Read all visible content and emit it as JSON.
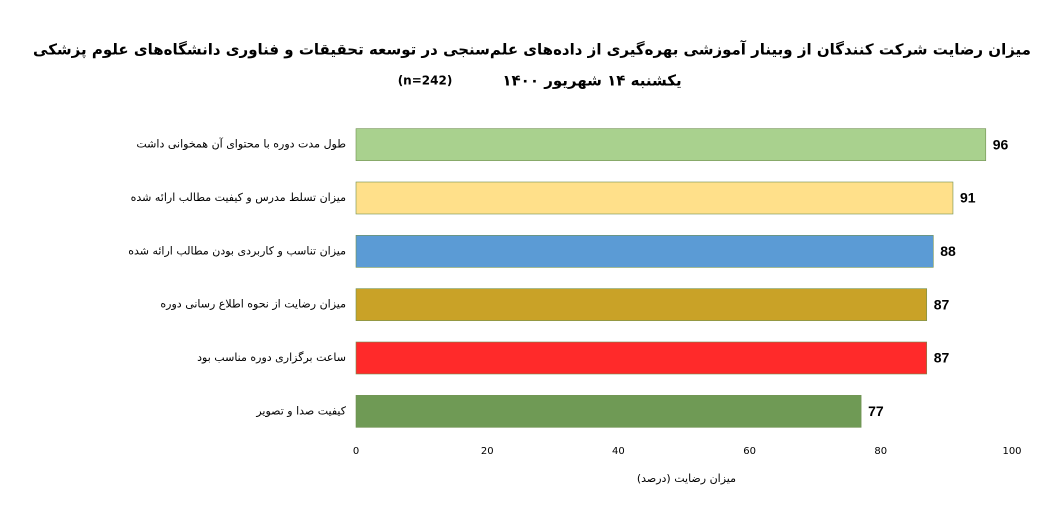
{
  "chart_data": {
    "type": "bar",
    "orientation": "horizontal",
    "title": "میزان رضایت شرکت کنندگان از وبینار آموزشی بهره‌گیری از داده‌های علم‌سنجی در توسعه تحقیقات و فناوری دانشگاه‌های علوم پزشکی",
    "subtitle": "یکشنبه ۱۴ شهریور ۱۴۰۰",
    "note": "(n=242)",
    "x_label": "میزان رضایت (درصد)",
    "categories": [
      "طول مدت دوره با محتوای آن همخوانی داشت",
      "میزان تسلط مدرس و کیفیت مطالب ارائه شده",
      "میزان تناسب و کاربردی بودن مطالب ارائه شده",
      "میزان رضایت از نحوه اطلاع رسانی دوره",
      "ساعت برگزاری دوره مناسب بود",
      "کیفیت صدا و تصویر"
    ],
    "values": [
      96,
      91,
      88,
      87,
      87,
      77
    ],
    "colors": [
      "#a9d18e",
      "#ffe08a",
      "#5b9bd5",
      "#c9a227",
      "#ff2a2a",
      "#6f9a55"
    ],
    "xlim": [
      0,
      100
    ],
    "xticks": [
      0,
      20,
      40,
      60,
      80,
      100
    ],
    "grid": false
  }
}
